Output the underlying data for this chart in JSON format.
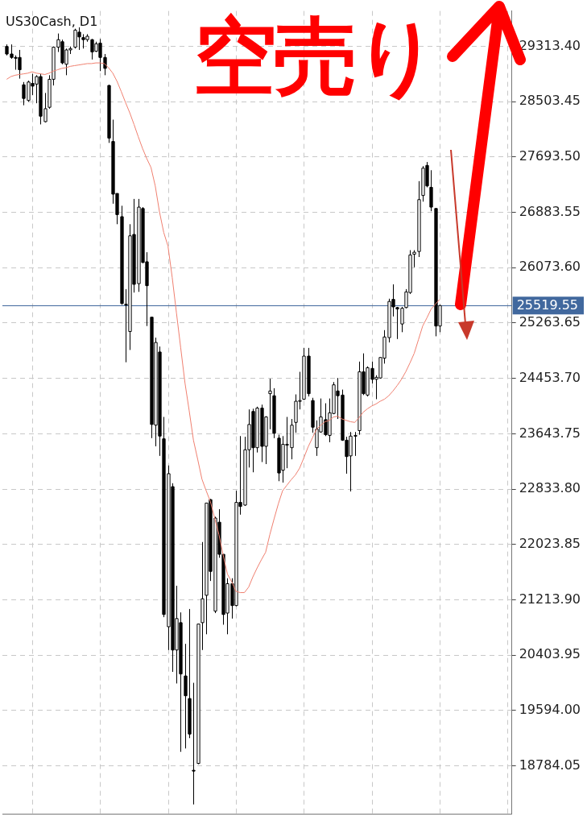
{
  "chart_data": {
    "type": "candlestick",
    "title": "US30Cash, D1",
    "annotations": [
      "空売り"
    ],
    "categories": [
      null,
      null,
      null,
      null,
      null,
      null,
      null,
      null,
      null,
      null,
      null,
      null,
      null,
      null,
      null,
      null,
      null,
      null,
      null,
      null,
      null,
      null,
      null,
      null,
      null,
      null,
      null,
      null,
      null,
      null,
      null,
      null,
      null,
      null,
      null,
      null,
      null,
      null,
      null,
      null,
      null,
      null,
      null,
      null,
      null,
      null,
      null,
      null,
      null,
      null,
      null,
      null,
      null,
      null,
      null,
      null,
      null,
      null,
      null,
      null,
      null,
      null,
      null,
      null,
      null,
      null,
      null,
      null,
      null,
      null,
      null,
      null,
      null,
      null,
      null,
      null,
      null,
      null,
      null,
      null,
      null,
      null,
      null,
      null,
      null,
      null,
      null,
      null,
      null,
      null,
      null,
      null,
      null,
      null,
      null,
      null,
      null,
      null,
      null,
      null,
      null,
      null,
      null
    ],
    "ohlc": [
      [
        29310,
        29340,
        29180,
        29200
      ],
      [
        29200,
        29340,
        29130,
        29150
      ],
      [
        29150,
        29180,
        28970,
        29140
      ],
      [
        29150,
        29260,
        28840,
        28970
      ],
      [
        28750,
        28790,
        28450,
        28550
      ],
      [
        28520,
        28810,
        28500,
        28790
      ],
      [
        28770,
        28910,
        28600,
        28730
      ],
      [
        28760,
        28890,
        28480,
        28870
      ],
      [
        28870,
        28910,
        28170,
        28290
      ],
      [
        28210,
        28630,
        28200,
        28400
      ],
      [
        28420,
        28890,
        28400,
        28830
      ],
      [
        28830,
        29310,
        28740,
        29300
      ],
      [
        29300,
        29500,
        29230,
        29410
      ],
      [
        29380,
        29410,
        29050,
        29070
      ],
      [
        29050,
        29280,
        28890,
        29260
      ],
      [
        29260,
        29310,
        29200,
        29280
      ],
      [
        29300,
        29570,
        29280,
        29550
      ],
      [
        29520,
        29590,
        29260,
        29450
      ],
      [
        29440,
        29490,
        29280,
        29410
      ],
      [
        29410,
        29490,
        29380,
        29460
      ],
      [
        29410,
        29420,
        29120,
        29230
      ],
      [
        29240,
        29380,
        29230,
        29350
      ],
      [
        29360,
        29420,
        28950,
        29150
      ],
      [
        29150,
        29200,
        28890,
        28990
      ],
      [
        28740,
        28750,
        27900,
        27970
      ],
      [
        27920,
        28240,
        27010,
        27150
      ],
      [
        27160,
        27160,
        26710,
        26850
      ],
      [
        26820,
        26980,
        25530,
        25550
      ],
      [
        25540,
        25760,
        24690,
        25530
      ],
      [
        25140,
        26710,
        24870,
        26540
      ],
      [
        26560,
        27080,
        25710,
        25830
      ],
      [
        25840,
        27080,
        25720,
        26960
      ],
      [
        26940,
        26960,
        26140,
        26150
      ],
      [
        26160,
        26300,
        25220,
        25810
      ],
      [
        25350,
        25350,
        23580,
        23780
      ],
      [
        23770,
        25050,
        23460,
        24980
      ],
      [
        24840,
        24920,
        23320,
        23610
      ],
      [
        23570,
        23890,
        20960,
        21000
      ],
      [
        20820,
        23180,
        20480,
        23060
      ],
      [
        22870,
        22920,
        20160,
        20480
      ],
      [
        20480,
        21420,
        19990,
        20940
      ],
      [
        20880,
        21030,
        18990,
        20130
      ],
      [
        20100,
        20570,
        19040,
        19810
      ],
      [
        19770,
        21080,
        19190,
        19250
      ],
      [
        18720,
        20000,
        18220,
        18710
      ],
      [
        18820,
        20860,
        18810,
        20860
      ],
      [
        20880,
        22060,
        20480,
        21230
      ],
      [
        21280,
        22630,
        20710,
        22630
      ],
      [
        22680,
        22690,
        21490,
        21630
      ],
      [
        21050,
        22430,
        21020,
        22410
      ],
      [
        22350,
        22540,
        21830,
        21880
      ],
      [
        21880,
        21880,
        20850,
        21000
      ],
      [
        21020,
        21530,
        20710,
        21450
      ],
      [
        21450,
        21530,
        20940,
        21130
      ],
      [
        21130,
        22810,
        21120,
        22640
      ],
      [
        22640,
        23610,
        22460,
        22580
      ],
      [
        22600,
        23600,
        22590,
        23410
      ],
      [
        23410,
        24000,
        23150,
        23780
      ],
      [
        23970,
        24010,
        23080,
        23440
      ],
      [
        23440,
        24040,
        23370,
        24020
      ],
      [
        24020,
        24070,
        23230,
        23460
      ],
      [
        23460,
        23900,
        23200,
        23890
      ],
      [
        24230,
        24450,
        23710,
        24270
      ],
      [
        24200,
        24310,
        23580,
        23650
      ],
      [
        23580,
        23630,
        22950,
        23070
      ],
      [
        23110,
        23610,
        22930,
        23490
      ],
      [
        23490,
        23890,
        23140,
        23480
      ],
      [
        23440,
        23860,
        23270,
        23770
      ],
      [
        23810,
        24220,
        23660,
        24120
      ],
      [
        24120,
        24550,
        24000,
        24130
      ],
      [
        24150,
        24900,
        24140,
        24780
      ],
      [
        24780,
        24900,
        24190,
        24230
      ],
      [
        24130,
        24170,
        23660,
        23740
      ],
      [
        23440,
        23840,
        23320,
        23710
      ],
      [
        23670,
        24160,
        23660,
        23890
      ],
      [
        23850,
        24090,
        23610,
        23630
      ],
      [
        23620,
        24160,
        23520,
        23950
      ],
      [
        23940,
        24400,
        23930,
        24360
      ],
      [
        24270,
        24460,
        23860,
        24200
      ],
      [
        24210,
        24290,
        23540,
        23550
      ],
      [
        23550,
        23600,
        23060,
        23310
      ],
      [
        23320,
        23670,
        22800,
        23610
      ],
      [
        23610,
        23670,
        23320,
        23620
      ],
      [
        23690,
        24700,
        23630,
        24550
      ],
      [
        24550,
        24820,
        24210,
        24230
      ],
      [
        24210,
        24630,
        24190,
        24610
      ],
      [
        24600,
        24700,
        24380,
        24440
      ],
      [
        24440,
        24500,
        24150,
        24470
      ],
      [
        24460,
        24760,
        24450,
        24760
      ],
      [
        24750,
        25160,
        24670,
        25060
      ],
      [
        25050,
        25620,
        24980,
        25580
      ],
      [
        25610,
        25830,
        25360,
        25500
      ],
      [
        25490,
        25500,
        25030,
        25470
      ],
      [
        25250,
        25500,
        25130,
        25480
      ],
      [
        25490,
        25760,
        25480,
        25720
      ],
      [
        25710,
        26330,
        25690,
        26260
      ],
      [
        26270,
        26330,
        26080,
        26300
      ],
      [
        26310,
        27340,
        26230,
        27070
      ],
      [
        27130,
        27560,
        27040,
        27530
      ],
      [
        27570,
        27620,
        27250,
        27270
      ],
      [
        27250,
        27500,
        26900,
        26960
      ],
      [
        26940,
        26940,
        25070,
        25220
      ],
      [
        25220,
        25530,
        25130,
        25520
      ]
    ],
    "series": [
      {
        "type": "line",
        "color": "#f08070",
        "values": [
          28830,
          28870,
          28890,
          28900,
          28910,
          28920,
          28940,
          28920,
          28910,
          28900,
          28920,
          28950,
          28970,
          28990,
          29000,
          29020,
          29030,
          29040,
          29050,
          29060,
          29060,
          29070,
          29070,
          29060,
          29000,
          28920,
          28800,
          28650,
          28490,
          28340,
          28170,
          27990,
          27820,
          27670,
          27540,
          27270,
          26890,
          26590,
          26390,
          25930,
          25410,
          24900,
          24390,
          23980,
          23550,
          23270,
          22980,
          22810,
          22650,
          22410,
          22170,
          21870,
          21590,
          21480,
          21340,
          21320,
          21320,
          21400,
          21550,
          21680,
          21800,
          21910,
          22170,
          22400,
          22620,
          22810,
          22890,
          22970,
          23040,
          23140,
          23290,
          23450,
          23580,
          23710,
          23770,
          23820,
          23840,
          23890,
          23900,
          23860,
          23840,
          23820,
          23810,
          23880,
          23960,
          24010,
          24050,
          24080,
          24120,
          24150,
          24200,
          24270,
          24350,
          24440,
          24550,
          24680,
          24820,
          25020,
          25220,
          25340,
          25470,
          25540,
          25610
        ]
      }
    ],
    "ylim": [
      18080,
      29830
    ],
    "yticks": [
      {
        "value": 29313.4,
        "label": "29313.40"
      },
      {
        "value": 28503.45,
        "label": "28503.45"
      },
      {
        "value": 27693.5,
        "label": "27693.50"
      },
      {
        "value": 26883.55,
        "label": "26883.55"
      },
      {
        "value": 26073.6,
        "label": "26073.60"
      },
      {
        "value": 25263.65,
        "label": "25263.65"
      },
      {
        "value": 24453.7,
        "label": "24453.70"
      },
      {
        "value": 23643.75,
        "label": "23643.75"
      },
      {
        "value": 22833.8,
        "label": "22833.80"
      },
      {
        "value": 22023.85,
        "label": "22023.85"
      },
      {
        "value": 21213.9,
        "label": "21213.90"
      },
      {
        "value": 20403.95,
        "label": "20403.95"
      },
      {
        "value": 19594,
        "label": "19594.00"
      },
      {
        "value": 18784.05,
        "label": "18784.05"
      }
    ],
    "ref_lines": [
      {
        "axis": "y",
        "value": 25519.55,
        "label": "25519.55",
        "color": "#41689e"
      }
    ],
    "grid": true,
    "tick_labels": "y"
  }
}
